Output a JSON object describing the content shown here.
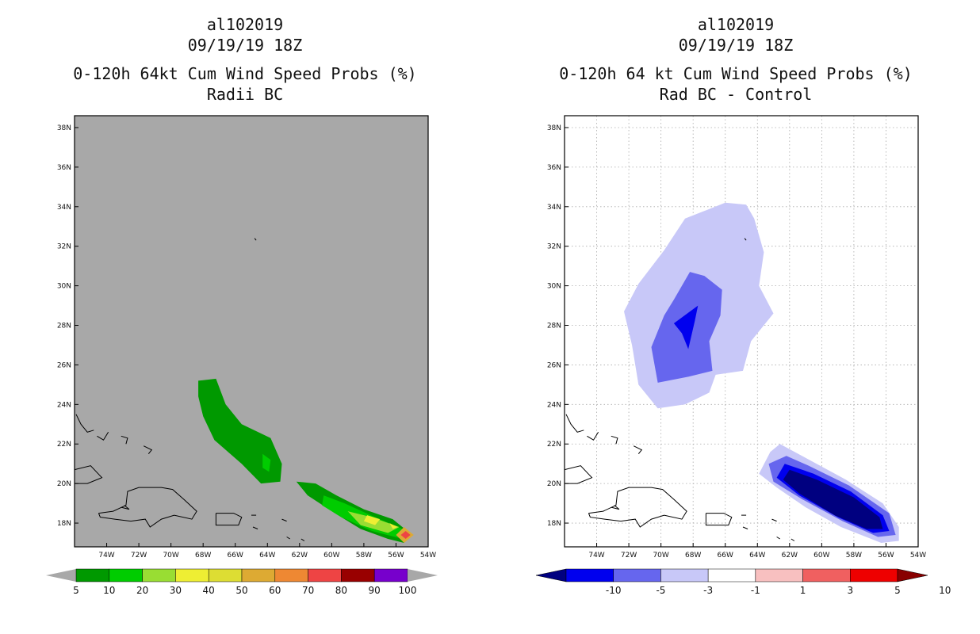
{
  "panels": [
    {
      "storm_id": "al102019",
      "datetime": "09/19/19 18Z",
      "title": "0-120h 64kt Cum Wind Speed Probs (%)",
      "subtitle": "Radii BC"
    },
    {
      "storm_id": "al102019",
      "datetime": "09/19/19 18Z",
      "title": "0-120h 64 kt Cum Wind Speed Probs (%)",
      "subtitle": "Rad BC - Control"
    }
  ],
  "chart_data": [
    {
      "type": "heatmap",
      "title": "0-120h 64kt Cum Wind Speed Probs (%) Radii BC",
      "xlabel": "",
      "ylabel": "",
      "xlim": [
        -76,
        -54
      ],
      "ylim": [
        16.8,
        38.6
      ],
      "x_ticks": [
        "74W",
        "72W",
        "70W",
        "68W",
        "66W",
        "64W",
        "62W",
        "60W",
        "58W",
        "56W",
        "54W"
      ],
      "y_ticks": [
        "18N",
        "20N",
        "22N",
        "24N",
        "26N",
        "28N",
        "30N",
        "32N",
        "34N",
        "36N",
        "38N"
      ],
      "grid": false,
      "colorbar": {
        "levels": [
          5,
          10,
          20,
          30,
          40,
          50,
          60,
          70,
          80,
          90,
          100
        ],
        "colors": [
          "#009900",
          "#00cc00",
          "#99dd33",
          "#eeee33",
          "#dddd33",
          "#ddaa33",
          "#ee8833",
          "#ee4444",
          "#990000",
          "#7700cc"
        ]
      },
      "regions": [
        {
          "level": 5,
          "lonlat": [
            [
              -68.3,
              25.2
            ],
            [
              -67.2,
              25.3
            ],
            [
              -66.6,
              24.0
            ],
            [
              -65.6,
              23.0
            ],
            [
              -63.8,
              22.3
            ],
            [
              -63.1,
              21.0
            ],
            [
              -63.2,
              20.1
            ],
            [
              -64.4,
              20.0
            ],
            [
              -65.6,
              21.0
            ],
            [
              -67.3,
              22.2
            ],
            [
              -68.0,
              23.4
            ],
            [
              -68.3,
              24.4
            ]
          ]
        },
        {
          "level": 10,
          "lonlat": [
            [
              -64.3,
              21.5
            ],
            [
              -63.8,
              21.2
            ],
            [
              -63.9,
              20.6
            ],
            [
              -64.3,
              20.8
            ]
          ]
        },
        {
          "level": 5,
          "lonlat": [
            [
              -62.2,
              20.1
            ],
            [
              -61.0,
              20.0
            ],
            [
              -59.7,
              19.4
            ],
            [
              -58.0,
              18.7
            ],
            [
              -56.2,
              18.2
            ],
            [
              -55.0,
              17.4
            ],
            [
              -55.5,
              17.0
            ],
            [
              -56.5,
              17.2
            ],
            [
              -58.2,
              17.7
            ],
            [
              -59.8,
              18.5
            ],
            [
              -61.5,
              19.4
            ]
          ]
        },
        {
          "level": 10,
          "lonlat": [
            [
              -60.5,
              19.4
            ],
            [
              -59.2,
              19.0
            ],
            [
              -57.3,
              18.3
            ],
            [
              -55.3,
              17.6
            ],
            [
              -55.6,
              17.2
            ],
            [
              -57.5,
              17.6
            ],
            [
              -59.4,
              18.3
            ],
            [
              -60.6,
              18.9
            ]
          ]
        },
        {
          "level": 20,
          "lonlat": [
            [
              -59.0,
              18.6
            ],
            [
              -57.5,
              18.3
            ],
            [
              -55.8,
              17.8
            ],
            [
              -56.5,
              17.5
            ],
            [
              -58.2,
              17.9
            ]
          ]
        },
        {
          "level": 30,
          "lonlat": [
            [
              -57.8,
              18.4
            ],
            [
              -57.0,
              18.2
            ],
            [
              -57.3,
              17.9
            ],
            [
              -58.0,
              18.1
            ]
          ]
        },
        {
          "level": 30,
          "lonlat": [
            [
              -56.4,
              18.0
            ],
            [
              -55.9,
              17.8
            ],
            [
              -56.2,
              17.7
            ]
          ]
        },
        {
          "level": 50,
          "lonlat": [
            [
              -55.5,
              17.8
            ],
            [
              -54.9,
              17.4
            ],
            [
              -55.5,
              17.0
            ],
            [
              -56.0,
              17.4
            ]
          ]
        },
        {
          "level": 70,
          "lonlat": [
            [
              -55.4,
              17.6
            ],
            [
              -55.1,
              17.4
            ],
            [
              -55.4,
              17.2
            ],
            [
              -55.7,
              17.4
            ]
          ]
        }
      ]
    },
    {
      "type": "heatmap",
      "title": "0-120h 64 kt Cum Wind Speed Probs (%) Rad BC - Control",
      "xlabel": "",
      "ylabel": "",
      "xlim": [
        -76,
        -54
      ],
      "ylim": [
        16.8,
        38.6
      ],
      "x_ticks": [
        "74W",
        "72W",
        "70W",
        "68W",
        "66W",
        "64W",
        "62W",
        "60W",
        "58W",
        "56W",
        "54W"
      ],
      "y_ticks": [
        "18N",
        "20N",
        "22N",
        "24N",
        "26N",
        "28N",
        "30N",
        "32N",
        "34N",
        "36N",
        "38N"
      ],
      "grid": true,
      "colorbar": {
        "levels": [
          -10,
          -5,
          -3,
          -1,
          1,
          3,
          5,
          10
        ],
        "colors": [
          "#000080",
          "#0000ee",
          "#6666ee",
          "#c8c8f8",
          "#ffffff",
          "#f8c0c0",
          "#f06060",
          "#ee0000",
          "#880000"
        ]
      },
      "regions": [
        {
          "level": -1,
          "lonlat": [
            [
              -69.8,
              31.8
            ],
            [
              -68.5,
              33.4
            ],
            [
              -66.0,
              34.2
            ],
            [
              -64.7,
              34.1
            ],
            [
              -64.2,
              33.4
            ],
            [
              -63.6,
              31.7
            ],
            [
              -63.9,
              30.0
            ],
            [
              -63.0,
              28.6
            ],
            [
              -64.4,
              27.2
            ],
            [
              -64.9,
              25.7
            ],
            [
              -66.6,
              25.5
            ],
            [
              -67.0,
              24.6
            ],
            [
              -68.5,
              24.0
            ],
            [
              -70.2,
              23.8
            ],
            [
              -71.4,
              25.0
            ],
            [
              -71.8,
              27.0
            ],
            [
              -72.3,
              28.7
            ],
            [
              -71.4,
              30.1
            ]
          ]
        },
        {
          "level": -3,
          "lonlat": [
            [
              -68.2,
              30.7
            ],
            [
              -67.3,
              30.5
            ],
            [
              -66.2,
              29.8
            ],
            [
              -66.3,
              28.5
            ],
            [
              -67.0,
              27.2
            ],
            [
              -66.8,
              25.7
            ],
            [
              -68.3,
              25.4
            ],
            [
              -70.2,
              25.1
            ],
            [
              -70.6,
              26.9
            ],
            [
              -69.8,
              28.5
            ],
            [
              -69.2,
              29.3
            ]
          ]
        },
        {
          "level": -5,
          "lonlat": [
            [
              -67.7,
              29.0
            ],
            [
              -67.9,
              28.2
            ],
            [
              -68.3,
              26.8
            ],
            [
              -68.7,
              27.6
            ],
            [
              -69.2,
              28.1
            ]
          ]
        },
        {
          "level": -1,
          "lonlat": [
            [
              -62.6,
              22.0
            ],
            [
              -61.0,
              21.3
            ],
            [
              -58.5,
              20.2
            ],
            [
              -56.2,
              19.0
            ],
            [
              -55.2,
              17.8
            ],
            [
              -55.2,
              17.1
            ],
            [
              -56.3,
              17.0
            ],
            [
              -58.8,
              17.8
            ],
            [
              -61.0,
              18.8
            ],
            [
              -62.8,
              19.8
            ],
            [
              -63.9,
              20.5
            ],
            [
              -63.2,
              21.6
            ]
          ]
        },
        {
          "level": -3,
          "lonlat": [
            [
              -62.2,
              21.4
            ],
            [
              -60.8,
              20.9
            ],
            [
              -58.3,
              19.9
            ],
            [
              -55.8,
              18.5
            ],
            [
              -55.4,
              17.4
            ],
            [
              -56.5,
              17.3
            ],
            [
              -58.7,
              18.1
            ],
            [
              -61.2,
              19.2
            ],
            [
              -63.0,
              20.1
            ],
            [
              -63.3,
              21.0
            ]
          ]
        },
        {
          "level": -5,
          "lonlat": [
            [
              -62.3,
              21.0
            ],
            [
              -60.5,
              20.5
            ],
            [
              -58.2,
              19.6
            ],
            [
              -56.2,
              18.4
            ],
            [
              -55.8,
              17.6
            ],
            [
              -56.8,
              17.5
            ],
            [
              -59.0,
              18.3
            ],
            [
              -61.4,
              19.4
            ],
            [
              -62.8,
              20.3
            ]
          ]
        },
        {
          "level": -10,
          "lonlat": [
            [
              -62.0,
              20.7
            ],
            [
              -60.3,
              20.2
            ],
            [
              -58.0,
              19.3
            ],
            [
              -56.4,
              18.3
            ],
            [
              -56.2,
              17.7
            ],
            [
              -57.2,
              17.7
            ],
            [
              -59.2,
              18.4
            ],
            [
              -61.4,
              19.5
            ],
            [
              -62.4,
              20.2
            ]
          ]
        }
      ]
    }
  ]
}
